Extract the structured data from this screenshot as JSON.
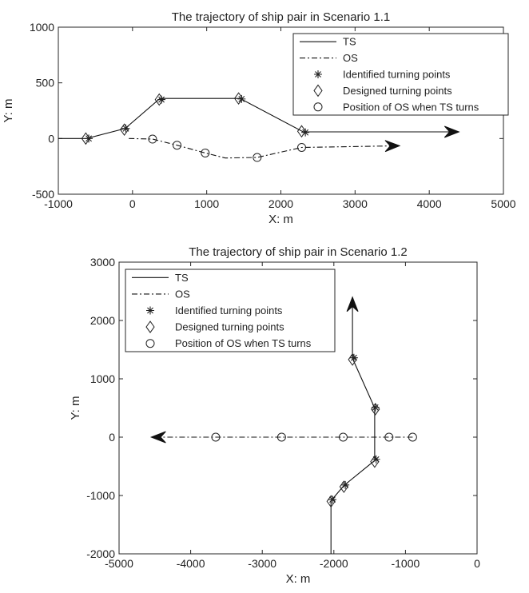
{
  "chart_data": [
    {
      "type": "line",
      "title": "The trajectory of ship pair in Scenario 1.1",
      "xlabel": "X: m",
      "ylabel": "Y: m",
      "xlim": [
        -1000,
        5000
      ],
      "ylim": [
        -500,
        1000
      ],
      "xticks": [
        "-1000",
        "0",
        "1000",
        "2000",
        "3000",
        "4000",
        "5000"
      ],
      "yticks": [
        "-500",
        "0",
        "500",
        "1000"
      ],
      "grid": false,
      "legend_position": "top-right",
      "legend": [
        "TS",
        "OS",
        "Identified turning points",
        "Designed turning points",
        "Position of OS when TS turns"
      ],
      "series": [
        {
          "name": "TS",
          "style": "solid",
          "end_arrow": true,
          "x": [
            -1000,
            -620,
            -100,
            370,
            1450,
            2300,
            4400
          ],
          "y": [
            0,
            0,
            90,
            360,
            360,
            60,
            60
          ]
        },
        {
          "name": "OS",
          "style": "dash-dot",
          "end_arrow": true,
          "x": [
            -50,
            270,
            600,
            980,
            1250,
            1680,
            2280,
            3600
          ],
          "y": [
            0,
            -5,
            -60,
            -130,
            -175,
            -170,
            -80,
            -65
          ]
        },
        {
          "name": "Identified turning points",
          "marker": "asterisk",
          "x": [
            -590,
            -90,
            390,
            1470,
            2330
          ],
          "y": [
            0,
            90,
            350,
            355,
            55
          ]
        },
        {
          "name": "Designed turning points",
          "marker": "diamond",
          "x": [
            -630,
            -110,
            360,
            1430,
            2280
          ],
          "y": [
            0,
            80,
            350,
            360,
            65
          ]
        },
        {
          "name": "Position of OS when TS turns",
          "marker": "circle",
          "x": [
            270,
            600,
            980,
            1680,
            2280
          ],
          "y": [
            -5,
            -60,
            -130,
            -170,
            -80
          ]
        }
      ]
    },
    {
      "type": "line",
      "title": "The trajectory of ship pair in Scenario 1.2",
      "xlabel": "X: m",
      "ylabel": "Y: m",
      "xlim": [
        -5000,
        0
      ],
      "ylim": [
        -2000,
        3000
      ],
      "xticks": [
        "-5000",
        "-4000",
        "-3000",
        "-2000",
        "-1000",
        "0"
      ],
      "yticks": [
        "-2000",
        "-1000",
        "0",
        "1000",
        "2000",
        "3000"
      ],
      "grid": false,
      "legend_position": "top-left",
      "legend": [
        "TS",
        "OS",
        "Identified turning points",
        "Designed turning points",
        "Position of OS when TS turns"
      ],
      "series": [
        {
          "name": "TS",
          "style": "solid",
          "end_arrow": true,
          "x": [
            -2040,
            -2040,
            -1860,
            -1430,
            -1430,
            -1740,
            -1740
          ],
          "y": [
            -2000,
            -1090,
            -830,
            -400,
            500,
            1350,
            2400
          ]
        },
        {
          "name": "OS",
          "style": "dash-dot",
          "end_arrow": true,
          "x": [
            -900,
            -1230,
            -1870,
            -2730,
            -3650,
            -4550
          ],
          "y": [
            0,
            0,
            0,
            0,
            0,
            0
          ]
        },
        {
          "name": "Identified turning points",
          "marker": "asterisk",
          "x": [
            -2020,
            -1840,
            -1410,
            -1420,
            -1720
          ],
          "y": [
            -1070,
            -820,
            -380,
            510,
            1360
          ]
        },
        {
          "name": "Designed turning points",
          "marker": "diamond",
          "x": [
            -2040,
            -1860,
            -1430,
            -1420,
            -1740
          ],
          "y": [
            -1100,
            -850,
            -420,
            480,
            1330
          ]
        },
        {
          "name": "Position of OS when TS turns",
          "marker": "circle",
          "x": [
            -900,
            -1230,
            -1870,
            -2730,
            -3650
          ],
          "y": [
            0,
            0,
            0,
            0,
            0
          ]
        }
      ]
    }
  ]
}
